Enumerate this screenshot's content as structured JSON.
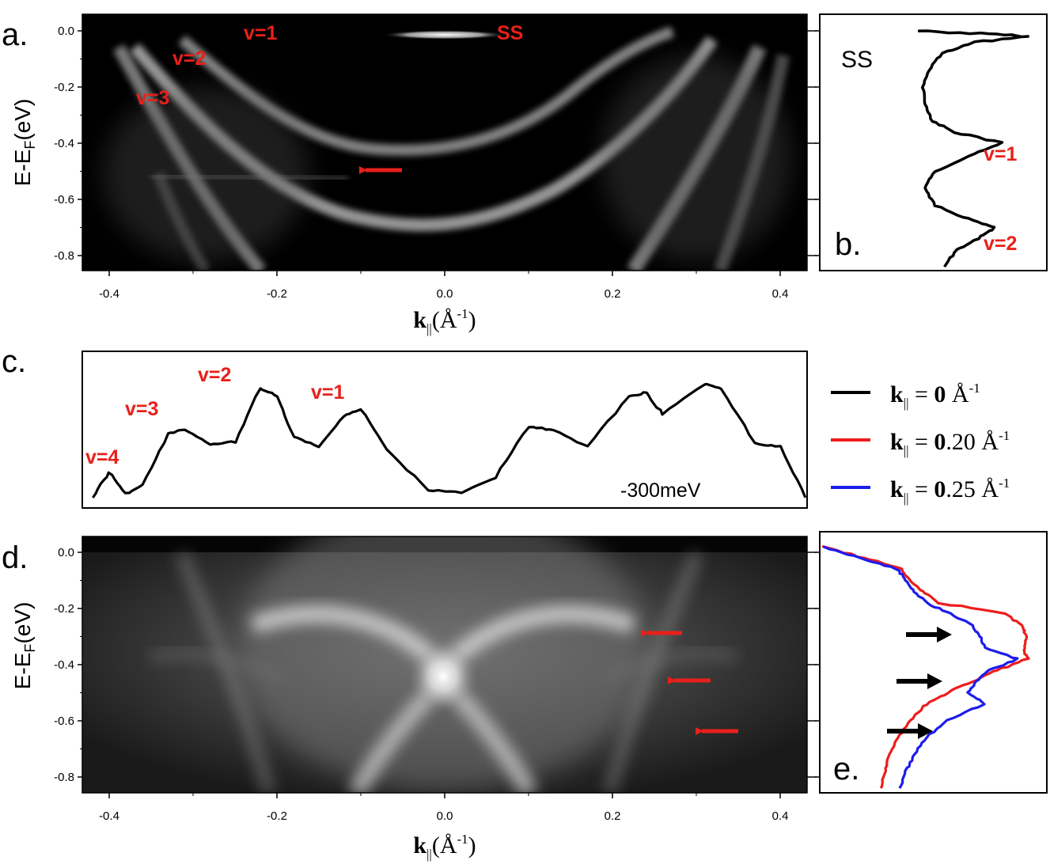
{
  "colors": {
    "label_red": "#e8201a",
    "curve_black": "#000000",
    "curve_red": "#ee1c1c",
    "curve_blue": "#1c1cee"
  },
  "panels": {
    "a": {
      "letter": "a.",
      "y_label": "E-E",
      "y_label_sub": "F",
      "y_label_unit": "(eV)",
      "x_label": "k",
      "x_label_sub": "||",
      "x_label_unit": "(Å",
      "x_label_sup": "-1",
      "x_label_close": ")",
      "labels": {
        "v1": "v=1",
        "v2": "v=2",
        "v3": "v=3",
        "ss": "SS"
      }
    },
    "b": {
      "letter": "b.",
      "ss": "SS",
      "v1": "v=1",
      "v2": "v=2"
    },
    "c": {
      "letter": "c.",
      "energy": "-300meV",
      "labels": {
        "v1": "v=1",
        "v2": "v=2",
        "v3": "v=3",
        "v4": "v=4"
      }
    },
    "d": {
      "letter": "d.",
      "y_label": "E-E",
      "y_label_sub": "F",
      "y_label_unit": "(eV)",
      "x_label": "k",
      "x_label_sub": "||",
      "x_label_unit": "(Å",
      "x_label_sup": "-1",
      "x_label_close": ")"
    },
    "e": {
      "letter": "e."
    }
  },
  "legend": [
    {
      "k": "k",
      "sub": "||",
      "eq": " = ",
      "bold": "0",
      "rest": " Å",
      "sup": "-1",
      "color": "#000000"
    },
    {
      "k": "k",
      "sub": "||",
      "eq": " = ",
      "bold": "0",
      "rest": ".20 Å",
      "sup": "-1",
      "color": "#ee1c1c"
    },
    {
      "k": "k",
      "sub": "||",
      "eq": " = ",
      "bold": "0",
      "rest": ".25 Å",
      "sup": "-1",
      "color": "#1c1cee"
    }
  ],
  "chart_data": [
    {
      "panel": "a",
      "type": "heatmap",
      "title": "",
      "xlabel": "k|| (Å^-1)",
      "ylabel": "E-EF (eV)",
      "x_ticks": [
        "-0.4",
        "-0.2",
        "0.0",
        "0.2",
        "0.4"
      ],
      "y_ticks": [
        "0.0",
        "-0.2",
        "-0.4",
        "-0.6",
        "-0.8"
      ],
      "xlim": [
        -0.43,
        0.43
      ],
      "ylim": [
        -0.85,
        0.05
      ],
      "bands": [
        {
          "name": "v=1",
          "vertex_energy": -0.42,
          "k_at_0eV": 0.2
        },
        {
          "name": "v=2",
          "vertex_energy": -0.7,
          "k_at_0eV": 0.29
        },
        {
          "name": "v=3",
          "k_at_0eV": 0.36
        },
        {
          "name": "SS",
          "energy": -0.02,
          "k_range": [
            -0.07,
            0.07
          ]
        }
      ],
      "annotations": [
        "v=1",
        "v=2",
        "v=3",
        "SS",
        "arrow at k≈-0.1, E≈-0.5"
      ]
    },
    {
      "panel": "b",
      "type": "line",
      "description": "EDC at k||=0",
      "ylim": [
        -0.85,
        0.05
      ],
      "y_ticks": [
        "0.0",
        "-0.2",
        "-0.4",
        "-0.6",
        "-0.8"
      ],
      "points_E_intensity": [
        [
          0.0,
          0.08
        ],
        [
          -0.01,
          0.6
        ],
        [
          -0.02,
          1.0
        ],
        [
          -0.04,
          0.55
        ],
        [
          -0.08,
          0.28
        ],
        [
          -0.14,
          0.17
        ],
        [
          -0.2,
          0.12
        ],
        [
          -0.26,
          0.14
        ],
        [
          -0.32,
          0.2
        ],
        [
          -0.36,
          0.38
        ],
        [
          -0.4,
          0.78
        ],
        [
          -0.44,
          0.55
        ],
        [
          -0.5,
          0.22
        ],
        [
          -0.56,
          0.14
        ],
        [
          -0.62,
          0.22
        ],
        [
          -0.67,
          0.5
        ],
        [
          -0.7,
          0.72
        ],
        [
          -0.74,
          0.58
        ],
        [
          -0.78,
          0.4
        ],
        [
          -0.84,
          0.3
        ]
      ],
      "annotations": [
        "SS",
        "v=1",
        "v=2"
      ]
    },
    {
      "panel": "c",
      "type": "line",
      "description": "MDC at -300meV",
      "xlim": [
        -0.43,
        0.43
      ],
      "points_k_intensity": [
        [
          -0.42,
          0.02
        ],
        [
          -0.4,
          0.22
        ],
        [
          -0.38,
          0.05
        ],
        [
          -0.36,
          0.12
        ],
        [
          -0.33,
          0.52
        ],
        [
          -0.31,
          0.56
        ],
        [
          -0.28,
          0.44
        ],
        [
          -0.25,
          0.46
        ],
        [
          -0.22,
          0.88
        ],
        [
          -0.2,
          0.82
        ],
        [
          -0.18,
          0.5
        ],
        [
          -0.15,
          0.42
        ],
        [
          -0.12,
          0.66
        ],
        [
          -0.1,
          0.72
        ],
        [
          -0.07,
          0.4
        ],
        [
          -0.02,
          0.08
        ],
        [
          0.02,
          0.06
        ],
        [
          0.06,
          0.18
        ],
        [
          0.1,
          0.58
        ],
        [
          0.13,
          0.55
        ],
        [
          0.17,
          0.42
        ],
        [
          0.22,
          0.82
        ],
        [
          0.24,
          0.85
        ],
        [
          0.26,
          0.68
        ],
        [
          0.31,
          0.92
        ],
        [
          0.33,
          0.88
        ],
        [
          0.37,
          0.45
        ],
        [
          0.4,
          0.42
        ],
        [
          0.43,
          0.02
        ]
      ],
      "annotations": [
        "v=1",
        "v=2",
        "v=3",
        "v=4",
        "-300meV"
      ]
    },
    {
      "panel": "d",
      "type": "heatmap",
      "xlabel": "k|| (Å^-1)",
      "ylabel": "E-EF (eV)",
      "x_ticks": [
        "-0.4",
        "-0.2",
        "0.0",
        "0.2",
        "0.4"
      ],
      "y_ticks": [
        "0.0",
        "-0.2",
        "-0.4",
        "-0.6",
        "-0.8"
      ],
      "xlim": [
        -0.43,
        0.43
      ],
      "ylim": [
        -0.85,
        0.05
      ],
      "features": [
        {
          "name": "X crossing",
          "k": 0.0,
          "energy": -0.45
        },
        {
          "name": "arrow",
          "k": 0.28,
          "energy": -0.3
        },
        {
          "name": "arrow",
          "k": 0.31,
          "energy": -0.46
        },
        {
          "name": "arrow",
          "k": 0.35,
          "energy": -0.64
        }
      ]
    },
    {
      "panel": "e",
      "type": "line",
      "ylim": [
        -0.85,
        0.05
      ],
      "y_ticks": [
        "0.0",
        "-0.2",
        "-0.4",
        "-0.6",
        "-0.8"
      ],
      "series": [
        {
          "name": "k|| = 0.20 Å-1",
          "color": "#ee1c1c",
          "points_E_intensity": [
            [
              0.02,
              0.0
            ],
            [
              -0.02,
              0.2
            ],
            [
              -0.06,
              0.38
            ],
            [
              -0.1,
              0.42
            ],
            [
              -0.14,
              0.48
            ],
            [
              -0.18,
              0.56
            ],
            [
              -0.22,
              0.88
            ],
            [
              -0.26,
              0.96
            ],
            [
              -0.3,
              0.98
            ],
            [
              -0.35,
              0.97
            ],
            [
              -0.38,
              0.99
            ],
            [
              -0.42,
              0.84
            ],
            [
              -0.46,
              0.72
            ],
            [
              -0.5,
              0.6
            ],
            [
              -0.54,
              0.5
            ],
            [
              -0.6,
              0.42
            ],
            [
              -0.66,
              0.36
            ],
            [
              -0.72,
              0.32
            ],
            [
              -0.78,
              0.3
            ],
            [
              -0.84,
              0.28
            ]
          ]
        },
        {
          "name": "k|| = 0.25 Å-1",
          "color": "#1c1cee",
          "points_E_intensity": [
            [
              0.02,
              0.0
            ],
            [
              -0.02,
              0.18
            ],
            [
              -0.06,
              0.36
            ],
            [
              -0.1,
              0.4
            ],
            [
              -0.14,
              0.44
            ],
            [
              -0.18,
              0.5
            ],
            [
              -0.22,
              0.62
            ],
            [
              -0.26,
              0.72
            ],
            [
              -0.3,
              0.76
            ],
            [
              -0.34,
              0.78
            ],
            [
              -0.38,
              0.94
            ],
            [
              -0.42,
              0.8
            ],
            [
              -0.46,
              0.74
            ],
            [
              -0.5,
              0.7
            ],
            [
              -0.54,
              0.78
            ],
            [
              -0.6,
              0.6
            ],
            [
              -0.66,
              0.5
            ],
            [
              -0.72,
              0.44
            ],
            [
              -0.78,
              0.4
            ],
            [
              -0.84,
              0.37
            ]
          ]
        }
      ]
    }
  ]
}
